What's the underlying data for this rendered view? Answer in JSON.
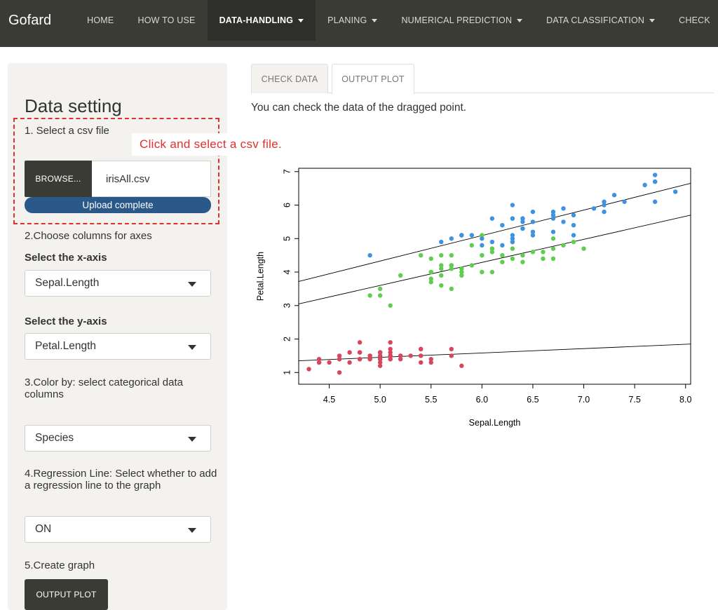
{
  "nav": {
    "brand": "Gofard",
    "items": [
      {
        "label": "HOME",
        "dropdown": false,
        "active": false
      },
      {
        "label": "HOW TO USE",
        "dropdown": false,
        "active": false
      },
      {
        "label": "DATA-HANDLING",
        "dropdown": true,
        "active": true
      },
      {
        "label": "PLANING",
        "dropdown": true,
        "active": false
      },
      {
        "label": "NUMERICAL PREDICTION",
        "dropdown": true,
        "active": false
      },
      {
        "label": "DATA CLASSIFICATION",
        "dropdown": true,
        "active": false
      },
      {
        "label": "CHECK",
        "dropdown": false,
        "active": false
      }
    ]
  },
  "sidebar": {
    "title": "Data setting",
    "step1": "1. Select a csv file",
    "browse_label": "BROWSE...",
    "file_name": "irisAll.csv",
    "upload_status": "Upload complete",
    "callout": "Click and select a csv file.",
    "step2": "2.Choose columns for axes",
    "x_label": "Select the x-axis",
    "x_value": "Sepal.Length",
    "y_label": "Select the y-axis",
    "y_value": "Petal.Length",
    "step3": "3.Color by: select categorical data columns",
    "color_value": "Species",
    "step4": "4.Regression Line: Select whether to add a regression line to the graph",
    "regression_value": "ON",
    "step5": "5.Create graph",
    "output_button": "OUTPUT PLOT"
  },
  "main": {
    "tabs": [
      {
        "label": "CHECK DATA",
        "active": false
      },
      {
        "label": "OUTPUT PLOT",
        "active": true
      }
    ],
    "description": "You can check the data of the dragged point."
  },
  "colors": {
    "navbar": "#3b3b36",
    "accent_red": "#e0302b",
    "progress_blue": "#2a5989",
    "series_red": "#d6475e",
    "series_green": "#5fcd4e",
    "series_blue": "#3f92df"
  },
  "chart_data": {
    "type": "scatter",
    "title": "",
    "xlabel": "Sepal.Length",
    "ylabel": "Petal.Length",
    "xlim": [
      4.2,
      8.05
    ],
    "ylim": [
      0.65,
      7.1
    ],
    "xticks": [
      "4.5",
      "5.0",
      "5.5",
      "6.0",
      "6.5",
      "7.0",
      "7.5",
      "8.0"
    ],
    "yticks": [
      "1",
      "2",
      "3",
      "4",
      "5",
      "6",
      "7"
    ],
    "grid": false,
    "series": [
      {
        "color": "#d6475e",
        "points": [
          [
            5.1,
            1.4
          ],
          [
            4.9,
            1.4
          ],
          [
            4.7,
            1.3
          ],
          [
            4.6,
            1.5
          ],
          [
            5.0,
            1.4
          ],
          [
            5.4,
            1.7
          ],
          [
            4.6,
            1.4
          ],
          [
            5.0,
            1.5
          ],
          [
            4.4,
            1.4
          ],
          [
            4.9,
            1.5
          ],
          [
            5.4,
            1.5
          ],
          [
            4.8,
            1.6
          ],
          [
            4.8,
            1.4
          ],
          [
            4.3,
            1.1
          ],
          [
            5.8,
            1.2
          ],
          [
            5.7,
            1.5
          ],
          [
            5.4,
            1.3
          ],
          [
            5.1,
            1.4
          ],
          [
            5.7,
            1.7
          ],
          [
            5.1,
            1.5
          ],
          [
            5.4,
            1.7
          ],
          [
            5.1,
            1.5
          ],
          [
            4.6,
            1.0
          ],
          [
            5.1,
            1.7
          ],
          [
            4.8,
            1.9
          ],
          [
            5.0,
            1.6
          ],
          [
            5.0,
            1.6
          ],
          [
            5.2,
            1.5
          ],
          [
            5.2,
            1.4
          ],
          [
            4.7,
            1.6
          ],
          [
            4.8,
            1.6
          ],
          [
            5.4,
            1.5
          ],
          [
            5.2,
            1.5
          ],
          [
            5.5,
            1.4
          ],
          [
            4.9,
            1.5
          ],
          [
            5.0,
            1.2
          ],
          [
            5.5,
            1.3
          ],
          [
            4.9,
            1.4
          ],
          [
            4.4,
            1.3
          ],
          [
            5.1,
            1.5
          ],
          [
            5.0,
            1.3
          ],
          [
            4.5,
            1.3
          ],
          [
            4.4,
            1.3
          ],
          [
            5.0,
            1.6
          ],
          [
            5.1,
            1.9
          ],
          [
            4.8,
            1.4
          ],
          [
            5.1,
            1.6
          ],
          [
            4.6,
            1.4
          ],
          [
            5.3,
            1.5
          ],
          [
            5.0,
            1.4
          ]
        ],
        "line": [
          [
            4.2,
            1.35
          ],
          [
            8.05,
            1.85
          ]
        ]
      },
      {
        "color": "#5fcd4e",
        "points": [
          [
            7.0,
            4.7
          ],
          [
            6.4,
            4.5
          ],
          [
            6.9,
            4.9
          ],
          [
            5.5,
            4.0
          ],
          [
            6.5,
            4.6
          ],
          [
            5.7,
            4.5
          ],
          [
            6.3,
            4.7
          ],
          [
            4.9,
            3.3
          ],
          [
            6.6,
            4.6
          ],
          [
            5.2,
            3.9
          ],
          [
            5.0,
            3.5
          ],
          [
            5.9,
            4.2
          ],
          [
            6.0,
            4.0
          ],
          [
            6.1,
            4.7
          ],
          [
            5.6,
            3.6
          ],
          [
            6.7,
            4.4
          ],
          [
            5.6,
            4.5
          ],
          [
            5.8,
            4.1
          ],
          [
            6.2,
            4.5
          ],
          [
            5.6,
            3.9
          ],
          [
            5.9,
            4.8
          ],
          [
            6.1,
            4.0
          ],
          [
            6.3,
            4.9
          ],
          [
            6.1,
            4.7
          ],
          [
            6.4,
            4.3
          ],
          [
            6.6,
            4.4
          ],
          [
            6.8,
            4.8
          ],
          [
            6.7,
            5.0
          ],
          [
            6.0,
            4.5
          ],
          [
            5.7,
            3.5
          ],
          [
            5.5,
            3.8
          ],
          [
            5.5,
            3.7
          ],
          [
            5.8,
            3.9
          ],
          [
            6.0,
            5.1
          ],
          [
            5.4,
            4.5
          ],
          [
            6.0,
            4.5
          ],
          [
            6.7,
            4.7
          ],
          [
            6.3,
            4.4
          ],
          [
            5.6,
            4.1
          ],
          [
            5.5,
            4.0
          ],
          [
            5.5,
            4.4
          ],
          [
            6.1,
            4.6
          ],
          [
            5.8,
            4.0
          ],
          [
            5.0,
            3.3
          ],
          [
            5.6,
            4.2
          ],
          [
            5.7,
            4.2
          ],
          [
            5.7,
            4.2
          ],
          [
            6.2,
            4.3
          ],
          [
            5.1,
            3.0
          ],
          [
            5.7,
            4.1
          ]
        ],
        "line": [
          [
            4.2,
            3.05
          ],
          [
            8.05,
            5.7
          ]
        ]
      },
      {
        "color": "#3f92df",
        "points": [
          [
            6.3,
            6.0
          ],
          [
            5.8,
            5.1
          ],
          [
            7.1,
            5.9
          ],
          [
            6.3,
            5.6
          ],
          [
            6.5,
            5.8
          ],
          [
            7.6,
            6.6
          ],
          [
            4.9,
            4.5
          ],
          [
            7.3,
            6.3
          ],
          [
            6.7,
            5.8
          ],
          [
            7.2,
            6.1
          ],
          [
            6.5,
            5.1
          ],
          [
            6.4,
            5.3
          ],
          [
            6.8,
            5.5
          ],
          [
            5.7,
            5.0
          ],
          [
            5.8,
            5.1
          ],
          [
            6.4,
            5.3
          ],
          [
            6.5,
            5.5
          ],
          [
            7.7,
            6.7
          ],
          [
            7.7,
            6.9
          ],
          [
            6.0,
            5.0
          ],
          [
            6.9,
            5.7
          ],
          [
            5.6,
            4.9
          ],
          [
            7.7,
            6.7
          ],
          [
            6.3,
            4.9
          ],
          [
            6.7,
            5.7
          ],
          [
            7.2,
            6.0
          ],
          [
            6.2,
            4.8
          ],
          [
            6.1,
            4.9
          ],
          [
            6.4,
            5.6
          ],
          [
            7.2,
            5.8
          ],
          [
            7.4,
            6.1
          ],
          [
            7.9,
            6.4
          ],
          [
            6.4,
            5.6
          ],
          [
            6.3,
            5.1
          ],
          [
            6.1,
            5.6
          ],
          [
            7.7,
            6.1
          ],
          [
            6.3,
            5.6
          ],
          [
            6.4,
            5.5
          ],
          [
            6.0,
            4.8
          ],
          [
            6.9,
            5.4
          ],
          [
            6.7,
            5.6
          ],
          [
            6.9,
            5.1
          ],
          [
            5.8,
            5.1
          ],
          [
            6.8,
            5.9
          ],
          [
            6.7,
            5.7
          ],
          [
            6.7,
            5.2
          ],
          [
            6.3,
            5.0
          ],
          [
            6.5,
            5.2
          ],
          [
            6.2,
            5.4
          ],
          [
            5.9,
            5.1
          ]
        ],
        "line": [
          [
            4.2,
            3.72
          ],
          [
            8.05,
            6.65
          ]
        ]
      }
    ]
  }
}
